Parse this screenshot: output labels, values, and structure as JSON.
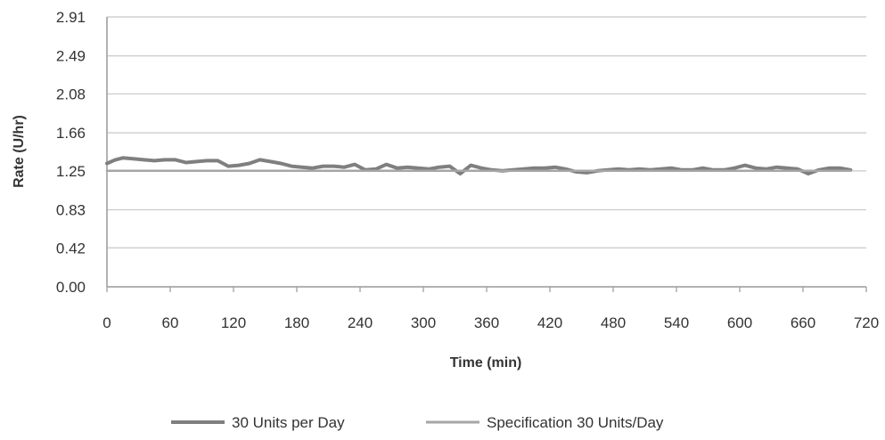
{
  "chart_data": {
    "type": "line",
    "title": "",
    "xlabel": "Time (min)",
    "ylabel": "Rate (U/hr)",
    "xlim": [
      0,
      720
    ],
    "ylim": [
      0,
      2.91
    ],
    "x_ticks": [
      "0",
      "60",
      "120",
      "180",
      "240",
      "300",
      "360",
      "420",
      "480",
      "540",
      "600",
      "660",
      "720"
    ],
    "y_ticks": [
      "0.00",
      "0.42",
      "0.83",
      "1.25",
      "1.66",
      "2.08",
      "2.49",
      "2.91"
    ],
    "grid": "horizontal",
    "legend_position": "bottom",
    "series": [
      {
        "name": "30 Units per Day",
        "color": "#7f7f7f",
        "x": [
          0,
          8,
          15,
          25,
          35,
          45,
          55,
          65,
          75,
          85,
          95,
          105,
          115,
          125,
          135,
          145,
          155,
          165,
          175,
          185,
          195,
          205,
          215,
          225,
          235,
          245,
          255,
          265,
          275,
          285,
          295,
          305,
          315,
          325,
          335,
          345,
          355,
          365,
          375,
          385,
          395,
          405,
          415,
          425,
          435,
          445,
          455,
          465,
          475,
          485,
          495,
          505,
          515,
          525,
          535,
          545,
          555,
          565,
          575,
          585,
          595,
          605,
          615,
          625,
          635,
          645,
          655,
          665,
          675,
          685,
          695,
          705
        ],
        "y": [
          1.33,
          1.37,
          1.39,
          1.38,
          1.37,
          1.36,
          1.37,
          1.37,
          1.34,
          1.35,
          1.36,
          1.36,
          1.3,
          1.31,
          1.33,
          1.37,
          1.35,
          1.33,
          1.3,
          1.29,
          1.28,
          1.3,
          1.3,
          1.29,
          1.32,
          1.26,
          1.27,
          1.32,
          1.28,
          1.29,
          1.28,
          1.27,
          1.29,
          1.3,
          1.22,
          1.31,
          1.28,
          1.26,
          1.25,
          1.26,
          1.27,
          1.28,
          1.28,
          1.29,
          1.27,
          1.24,
          1.23,
          1.25,
          1.26,
          1.27,
          1.26,
          1.27,
          1.26,
          1.27,
          1.28,
          1.26,
          1.26,
          1.28,
          1.26,
          1.26,
          1.28,
          1.31,
          1.28,
          1.27,
          1.29,
          1.28,
          1.27,
          1.22,
          1.26,
          1.28,
          1.28,
          1.26
        ]
      },
      {
        "name": "Specification 30 Units/Day",
        "color": "#a6a6a6",
        "x": [
          0,
          705
        ],
        "y": [
          1.25,
          1.25
        ]
      }
    ]
  }
}
